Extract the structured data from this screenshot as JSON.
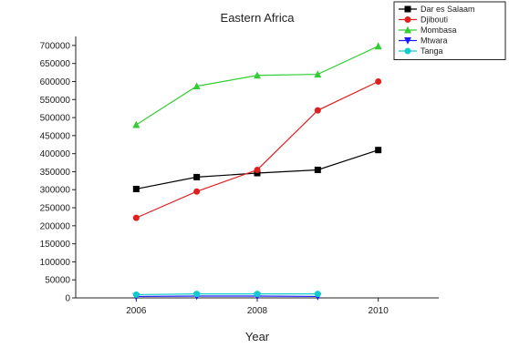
{
  "chart_data": {
    "type": "line",
    "title": "Eastern Africa",
    "xlabel": "Year",
    "ylabel": "",
    "x": [
      2006,
      2007,
      2008,
      2009,
      2010
    ],
    "xticks": [
      2006,
      2008,
      2010
    ],
    "xlim": [
      2005,
      2011
    ],
    "ylim": [
      0,
      725000
    ],
    "yticks": [
      0,
      50000,
      100000,
      150000,
      200000,
      250000,
      300000,
      350000,
      400000,
      450000,
      500000,
      550000,
      600000,
      650000,
      700000
    ],
    "ytick_labels": [
      "0",
      "50000",
      "100000",
      "150000",
      "200000",
      "250000",
      "300000",
      "350000",
      "400000",
      "450000",
      "500000",
      "550000",
      "600000",
      "650000",
      "700000"
    ],
    "grid": false,
    "legend_position": "top-right",
    "series": [
      {
        "name": "Dar es Salaam",
        "color": "#000000",
        "marker": "square",
        "x": [
          2006,
          2007,
          2008,
          2009,
          2010
        ],
        "values": [
          302000,
          335000,
          346000,
          355000,
          410000
        ]
      },
      {
        "name": "Djibouti",
        "color": "#e02020",
        "marker": "circle",
        "x": [
          2006,
          2007,
          2008,
          2009,
          2010
        ],
        "values": [
          222000,
          295000,
          355000,
          520000,
          600000
        ]
      },
      {
        "name": "Mombasa",
        "color": "#33cc33",
        "marker": "triangle-up",
        "x": [
          2006,
          2007,
          2008,
          2009,
          2010
        ],
        "values": [
          480000,
          587000,
          617000,
          620000,
          698000
        ]
      },
      {
        "name": "Mtwara",
        "color": "#1a1aff",
        "marker": "triangle-down",
        "x": [
          2006,
          2007,
          2008,
          2009
        ],
        "values": [
          4000,
          5000,
          5000,
          4000
        ]
      },
      {
        "name": "Tanga",
        "color": "#11cccc",
        "marker": "circle",
        "x": [
          2006,
          2007,
          2008,
          2009
        ],
        "values": [
          9000,
          11000,
          11000,
          11000
        ]
      }
    ]
  }
}
